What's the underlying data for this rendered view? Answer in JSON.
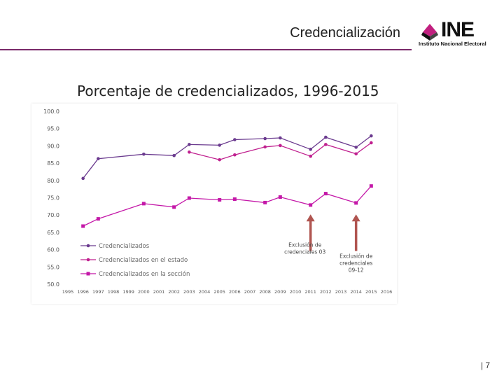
{
  "header": {
    "title": "Credencialización"
  },
  "logo": {
    "text": "INE",
    "subtitle": "Instituto Nacional Electoral"
  },
  "footer": {
    "page": "| 7"
  },
  "chart_data": {
    "type": "line",
    "title": "Porcentaje de credencializados, 1996-2015",
    "xlabel": "",
    "ylabel": "",
    "x_ticks": [
      "1995",
      "1996",
      "1997",
      "1998",
      "1999",
      "2000",
      "2001",
      "2002",
      "2003",
      "2004",
      "2005",
      "2006",
      "2007",
      "2008",
      "2009",
      "2010",
      "2011",
      "2012",
      "2013",
      "2014",
      "2015",
      "2016"
    ],
    "xlim": [
      1995,
      2016
    ],
    "ylim": [
      50,
      100
    ],
    "y_ticks": [
      "50.0",
      "55.0",
      "60.0",
      "65.0",
      "70.0",
      "75.0",
      "80.0",
      "85.0",
      "90.0",
      "95.0",
      "100.0"
    ],
    "series": [
      {
        "name": "Credencializados",
        "color": "#6b3b8f",
        "marker": "circle",
        "x": [
          1996,
          1997,
          2000,
          2002,
          2003,
          2005,
          2006,
          2008,
          2009,
          2011,
          2012,
          2014,
          2015
        ],
        "values": [
          80.6,
          86.3,
          87.6,
          87.2,
          90.4,
          90.2,
          91.8,
          92.1,
          92.3,
          89.0,
          92.5,
          89.6,
          92.9
        ]
      },
      {
        "name": "Credencializados en el estado",
        "color": "#c0208f",
        "marker": "circle",
        "x": [
          2003,
          2005,
          2006,
          2008,
          2009,
          2011,
          2012,
          2014,
          2015
        ],
        "values": [
          88.2,
          86.0,
          87.4,
          89.7,
          90.1,
          87.0,
          90.4,
          87.7,
          90.9
        ]
      },
      {
        "name": "Credencializados en la sección",
        "color": "#c418a8",
        "marker": "square",
        "x": [
          1996,
          1997,
          2000,
          2002,
          2003,
          2005,
          2006,
          2008,
          2009,
          2011,
          2012,
          2014,
          2015
        ],
        "values": [
          66.8,
          68.9,
          73.3,
          72.3,
          74.9,
          74.4,
          74.6,
          73.6,
          75.2,
          72.9,
          76.2,
          73.5,
          78.4
        ]
      }
    ],
    "annotations": [
      {
        "text": "Exclusión de credenciales 03",
        "line1": "Exclusión de",
        "line2": "credenciales 03",
        "x": 2011
      },
      {
        "text": "Exclusión de credenciales 09-12",
        "line1": "Exclusión de",
        "line2": "credenciales",
        "line3": "09-12",
        "x": 2014
      }
    ],
    "arrow_color": "#b05550",
    "grid": false,
    "legend": "bottom-left"
  }
}
